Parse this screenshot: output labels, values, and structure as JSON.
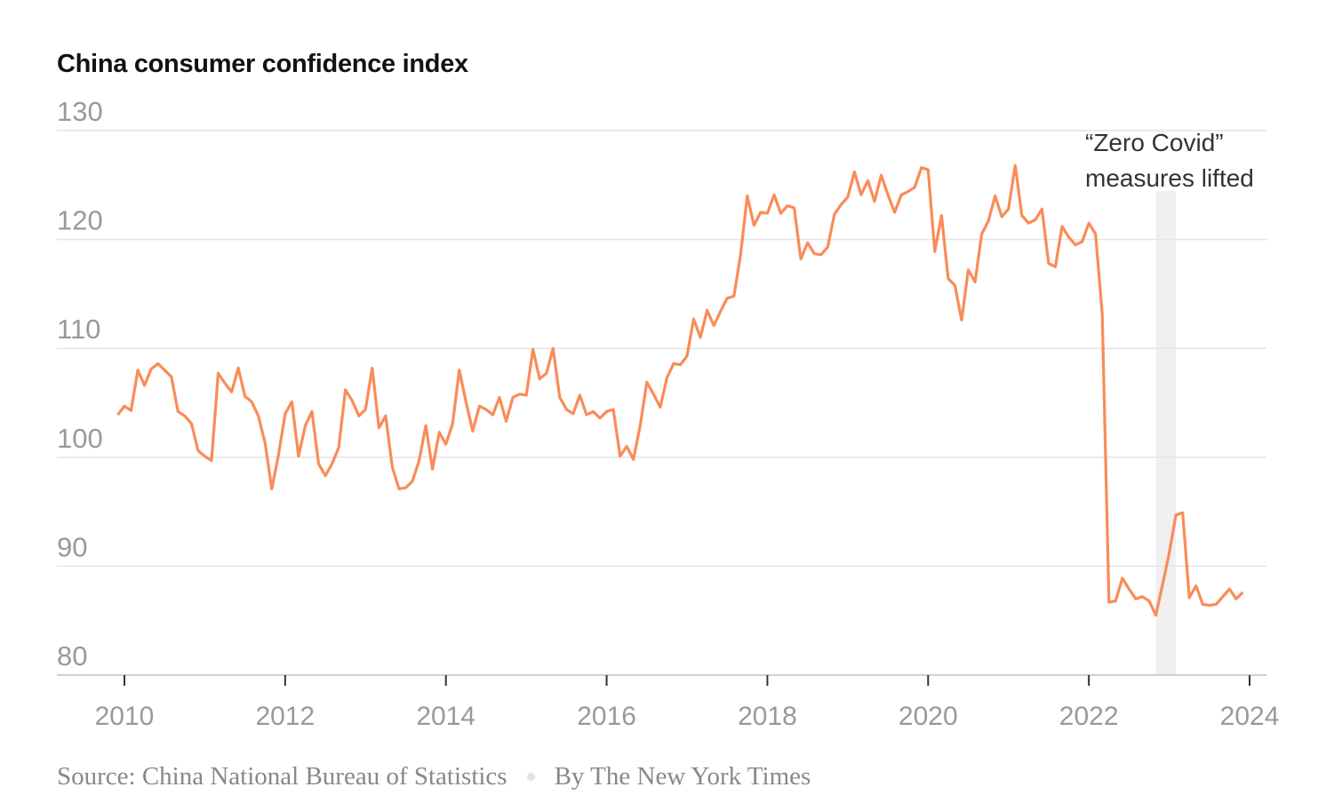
{
  "chart_data": {
    "type": "line",
    "title": "China consumer confidence index",
    "xlabel": "",
    "ylabel": "",
    "ylim": [
      80,
      130
    ],
    "yticks": [
      "80",
      "90",
      "100",
      "110",
      "120",
      "130"
    ],
    "xlim": [
      "2009-12",
      "2024-01"
    ],
    "xticks": [
      "2010",
      "2012",
      "2014",
      "2016",
      "2018",
      "2020",
      "2022",
      "2024"
    ],
    "grid": true,
    "line_color": "#f98c58",
    "x": [
      "2009-12",
      "2010-01",
      "2010-02",
      "2010-03",
      "2010-04",
      "2010-05",
      "2010-06",
      "2010-07",
      "2010-08",
      "2010-09",
      "2010-10",
      "2010-11",
      "2010-12",
      "2011-01",
      "2011-02",
      "2011-03",
      "2011-04",
      "2011-05",
      "2011-06",
      "2011-07",
      "2011-08",
      "2011-09",
      "2011-10",
      "2011-11",
      "2011-12",
      "2012-01",
      "2012-02",
      "2012-03",
      "2012-04",
      "2012-05",
      "2012-06",
      "2012-07",
      "2012-08",
      "2012-09",
      "2012-10",
      "2012-11",
      "2012-12",
      "2013-01",
      "2013-02",
      "2013-03",
      "2013-04",
      "2013-05",
      "2013-06",
      "2013-07",
      "2013-08",
      "2013-09",
      "2013-10",
      "2013-11",
      "2013-12",
      "2014-01",
      "2014-02",
      "2014-03",
      "2014-04",
      "2014-05",
      "2014-06",
      "2014-07",
      "2014-08",
      "2014-09",
      "2014-10",
      "2014-11",
      "2014-12",
      "2015-01",
      "2015-02",
      "2015-03",
      "2015-04",
      "2015-05",
      "2015-06",
      "2015-07",
      "2015-08",
      "2015-09",
      "2015-10",
      "2015-11",
      "2015-12",
      "2016-01",
      "2016-02",
      "2016-03",
      "2016-04",
      "2016-05",
      "2016-06",
      "2016-07",
      "2016-08",
      "2016-09",
      "2016-10",
      "2016-11",
      "2016-12",
      "2017-01",
      "2017-02",
      "2017-03",
      "2017-04",
      "2017-05",
      "2017-06",
      "2017-07",
      "2017-08",
      "2017-09",
      "2017-10",
      "2017-11",
      "2017-12",
      "2018-01",
      "2018-02",
      "2018-03",
      "2018-04",
      "2018-05",
      "2018-06",
      "2018-07",
      "2018-08",
      "2018-09",
      "2018-10",
      "2018-11",
      "2018-12",
      "2019-01",
      "2019-02",
      "2019-03",
      "2019-04",
      "2019-05",
      "2019-06",
      "2019-07",
      "2019-08",
      "2019-09",
      "2019-10",
      "2019-11",
      "2019-12",
      "2020-01",
      "2020-02",
      "2020-03",
      "2020-04",
      "2020-05",
      "2020-06",
      "2020-07",
      "2020-08",
      "2020-09",
      "2020-10",
      "2020-11",
      "2020-12",
      "2021-01",
      "2021-02",
      "2021-03",
      "2021-04",
      "2021-05",
      "2021-06",
      "2021-07",
      "2021-08",
      "2021-09",
      "2021-10",
      "2021-11",
      "2021-12",
      "2022-01",
      "2022-02",
      "2022-03",
      "2022-04",
      "2022-05",
      "2022-06",
      "2022-07",
      "2022-08",
      "2022-09",
      "2022-10",
      "2022-11",
      "2022-12",
      "2023-01",
      "2023-02",
      "2023-03",
      "2023-04",
      "2023-05",
      "2023-06",
      "2023-07",
      "2023-08",
      "2023-09",
      "2023-10",
      "2023-11",
      "2023-12"
    ],
    "y": [
      103.9,
      104.7,
      104.3,
      108.0,
      106.6,
      108.1,
      108.6,
      108.0,
      107.4,
      104.2,
      103.8,
      103.1,
      100.6,
      100.1,
      99.7,
      107.7,
      106.8,
      106.0,
      108.2,
      105.6,
      105.1,
      103.8,
      101.3,
      97.1,
      100.2,
      104.0,
      105.1,
      100.1,
      102.9,
      104.2,
      99.4,
      98.3,
      99.4,
      100.9,
      106.2,
      105.2,
      103.8,
      104.4,
      108.2,
      102.7,
      103.8,
      99.1,
      97.1,
      97.2,
      97.8,
      99.7,
      102.9,
      98.9,
      102.3,
      101.2,
      103.1,
      108.0,
      105.1,
      102.4,
      104.7,
      104.4,
      103.9,
      105.5,
      103.3,
      105.5,
      105.8,
      105.7,
      109.9,
      107.2,
      107.7,
      110.0,
      105.5,
      104.4,
      104.0,
      105.7,
      103.9,
      104.2,
      103.6,
      104.2,
      104.4,
      100.1,
      101.0,
      99.8,
      102.9,
      106.9,
      105.8,
      104.6,
      107.3,
      108.6,
      108.5,
      109.3,
      112.7,
      111.0,
      113.5,
      112.1,
      113.4,
      114.6,
      114.8,
      118.6,
      124.0,
      121.3,
      122.5,
      122.4,
      124.1,
      122.4,
      123.1,
      122.9,
      118.2,
      119.7,
      118.7,
      118.6,
      119.3,
      122.3,
      123.2,
      123.9,
      126.2,
      124.1,
      125.4,
      123.5,
      125.9,
      124.1,
      122.5,
      124.1,
      124.4,
      124.8,
      126.6,
      126.4,
      118.9,
      122.2,
      116.4,
      115.8,
      112.6,
      117.2,
      116.1,
      120.5,
      121.7,
      124.0,
      122.1,
      122.8,
      126.8,
      122.2,
      121.5,
      121.8,
      122.8,
      117.8,
      117.5,
      121.2,
      120.2,
      119.5,
      119.8,
      121.5,
      120.5,
      113.2,
      86.7,
      86.8,
      88.9,
      87.9,
      87.0,
      87.2,
      86.8,
      85.5,
      88.3,
      91.2,
      94.7,
      94.9,
      87.1,
      88.2,
      86.5,
      86.4,
      86.5,
      87.2,
      87.9,
      87.0,
      87.6
    ],
    "shaded_period": {
      "from": "2022-11",
      "to": "2023-02",
      "color": "#f0f0f0"
    },
    "annotation": {
      "line1": "“Zero Covid”",
      "line2": "measures lifted"
    }
  },
  "footer": {
    "source": "Source: China National Bureau of Statistics",
    "credit": "By The New York Times"
  }
}
